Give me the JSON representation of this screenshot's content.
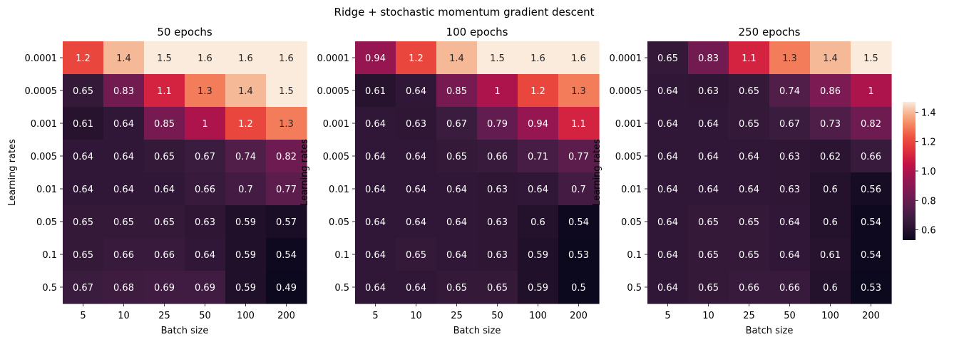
{
  "figure": {
    "title": "Ridge + stochastic momentum gradient descent"
  },
  "chart_data": [
    {
      "type": "heatmap",
      "title": "50 epochs",
      "xlabel": "Batch size",
      "ylabel": "Learning rates",
      "x": [
        "5",
        "10",
        "25",
        "50",
        "100",
        "200"
      ],
      "y": [
        "0.0001",
        "0.0005",
        "0.001",
        "0.005",
        "0.01",
        "0.05",
        "0.1",
        "0.5"
      ],
      "values": [
        [
          1.2,
          1.4,
          1.5,
          1.6,
          1.6,
          1.6
        ],
        [
          0.65,
          0.83,
          1.1,
          1.3,
          1.4,
          1.5
        ],
        [
          0.61,
          0.64,
          0.85,
          1,
          1.2,
          1.3
        ],
        [
          0.64,
          0.64,
          0.65,
          0.67,
          0.74,
          0.82
        ],
        [
          0.64,
          0.64,
          0.64,
          0.66,
          0.7,
          0.77
        ],
        [
          0.65,
          0.65,
          0.65,
          0.63,
          0.59,
          0.57
        ],
        [
          0.65,
          0.66,
          0.66,
          0.64,
          0.59,
          0.54
        ],
        [
          0.67,
          0.68,
          0.69,
          0.69,
          0.59,
          0.49
        ]
      ],
      "colormap": "rocket"
    },
    {
      "type": "heatmap",
      "title": "100 epochs",
      "xlabel": "Batch size",
      "ylabel": "Learning rates",
      "x": [
        "5",
        "10",
        "25",
        "50",
        "100",
        "200"
      ],
      "y": [
        "0.0001",
        "0.0005",
        "0.001",
        "0.005",
        "0.01",
        "0.05",
        "0.1",
        "0.5"
      ],
      "values": [
        [
          0.94,
          1.2,
          1.4,
          1.5,
          1.6,
          1.6
        ],
        [
          0.61,
          0.64,
          0.85,
          1,
          1.2,
          1.3
        ],
        [
          0.64,
          0.63,
          0.67,
          0.79,
          0.94,
          1.1
        ],
        [
          0.64,
          0.64,
          0.65,
          0.66,
          0.71,
          0.77
        ],
        [
          0.64,
          0.64,
          0.64,
          0.63,
          0.64,
          0.7
        ],
        [
          0.64,
          0.64,
          0.64,
          0.63,
          0.6,
          0.54
        ],
        [
          0.64,
          0.65,
          0.64,
          0.63,
          0.59,
          0.53
        ],
        [
          0.64,
          0.64,
          0.65,
          0.65,
          0.59,
          0.5
        ]
      ],
      "colormap": "rocket"
    },
    {
      "type": "heatmap",
      "title": "250 epochs",
      "xlabel": "Batch size",
      "ylabel": "Learning rates",
      "x": [
        "5",
        "10",
        "25",
        "50",
        "100",
        "200"
      ],
      "y": [
        "0.0001",
        "0.0005",
        "0.001",
        "0.005",
        "0.01",
        "0.05",
        "0.1",
        "0.5"
      ],
      "values": [
        [
          0.65,
          0.83,
          1.1,
          1.3,
          1.4,
          1.5
        ],
        [
          0.64,
          0.63,
          0.65,
          0.74,
          0.86,
          1
        ],
        [
          0.64,
          0.64,
          0.65,
          0.67,
          0.73,
          0.82
        ],
        [
          0.64,
          0.64,
          0.64,
          0.63,
          0.62,
          0.66
        ],
        [
          0.64,
          0.64,
          0.64,
          0.63,
          0.6,
          0.56
        ],
        [
          0.64,
          0.65,
          0.65,
          0.64,
          0.6,
          0.54
        ],
        [
          0.64,
          0.65,
          0.65,
          0.64,
          0.61,
          0.54
        ],
        [
          0.64,
          0.65,
          0.66,
          0.66,
          0.6,
          0.53
        ]
      ],
      "colormap": "rocket"
    }
  ],
  "colorbar": {
    "ticks": [
      "0.6",
      "0.8",
      "1.0",
      "1.2",
      "1.4"
    ],
    "vmin": 0.53,
    "vmax": 1.47
  }
}
